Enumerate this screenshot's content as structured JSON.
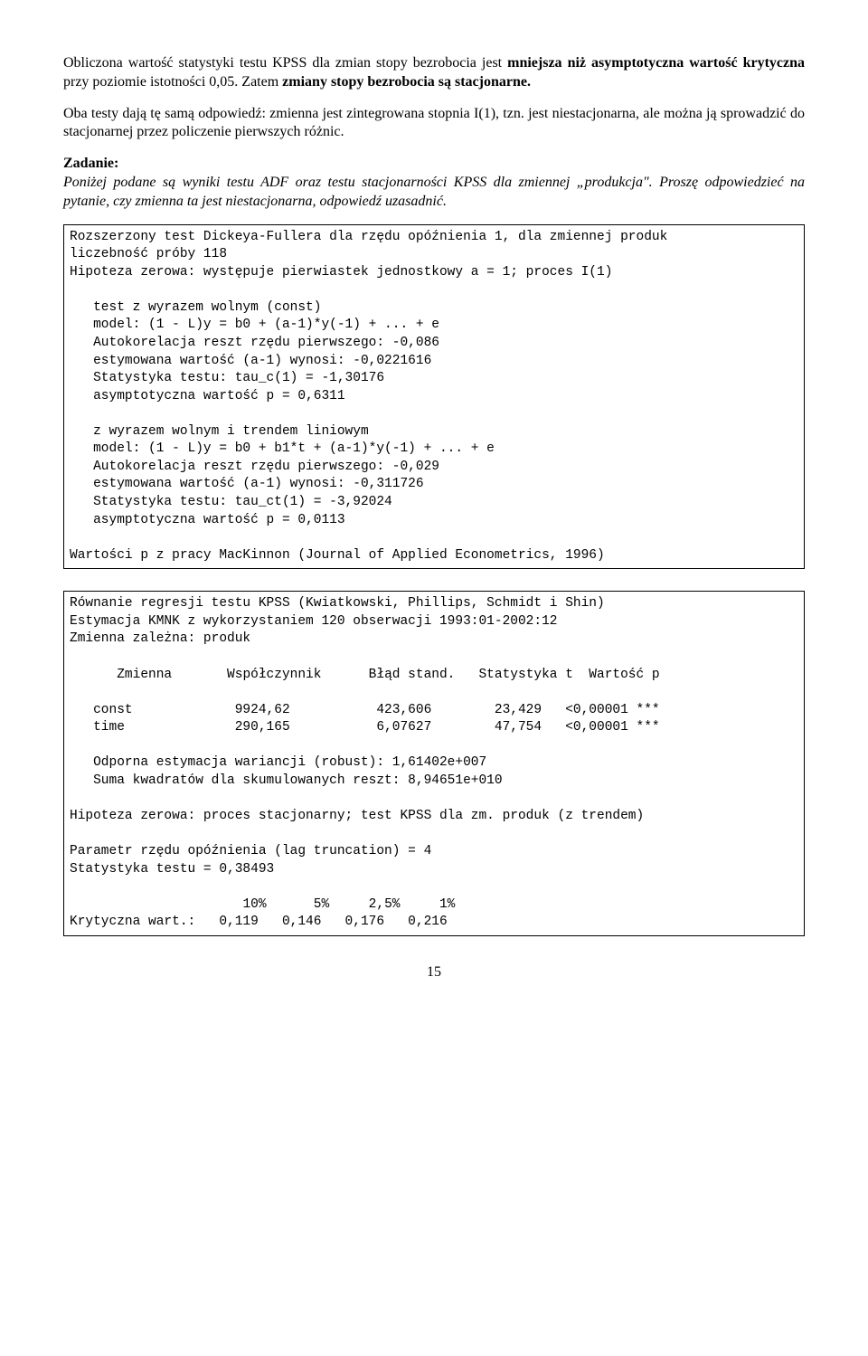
{
  "intro": {
    "p1a": "Obliczona wartość statystyki testu KPSS dla zmian stopy bezrobocia jest ",
    "p1b": "mniejsza niż asymptotyczna wartość krytyczna",
    "p1c": " przy poziomie istotności 0,05. Zatem ",
    "p1d": "zmiany stopy bezrobocia są stacjonarne.",
    "p2": "Oba testy dają tę samą odpowiedź: zmienna jest zintegrowana stopnia I(1), tzn. jest niestacjonarna, ale można ją sprowadzić do stacjonarnej przez policzenie pierwszych różnic."
  },
  "zadanie": {
    "heading": "Zadanie:",
    "body": "Poniżej podane są wyniki testu ADF oraz testu stacjonarności KPSS dla zmiennej „produkcja\". Proszę odpowiedzieć na pytanie, czy zmienna ta jest niestacjonarna, odpowiedź uzasadnić."
  },
  "adf_box": "Rozszerzony test Dickeya-Fullera dla rzędu opóźnienia 1, dla zmiennej produk\nliczebność próby 118\nHipoteza zerowa: występuje pierwiastek jednostkowy a = 1; proces I(1)\n\n   test z wyrazem wolnym (const)\n   model: (1 - L)y = b0 + (a-1)*y(-1) + ... + e\n   Autokorelacja reszt rzędu pierwszego: -0,086\n   estymowana wartość (a-1) wynosi: -0,0221616\n   Statystyka testu: tau_c(1) = -1,30176\n   asymptotyczna wartość p = 0,6311\n\n   z wyrazem wolnym i trendem liniowym\n   model: (1 - L)y = b0 + b1*t + (a-1)*y(-1) + ... + e\n   Autokorelacja reszt rzędu pierwszego: -0,029\n   estymowana wartość (a-1) wynosi: -0,311726\n   Statystyka testu: tau_ct(1) = -3,92024\n   asymptotyczna wartość p = 0,0113\n\nWartości p z pracy MacKinnon (Journal of Applied Econometrics, 1996)",
  "kpss_box": "Równanie regresji testu KPSS (Kwiatkowski, Phillips, Schmidt i Shin)\nEstymacja KMNK z wykorzystaniem 120 obserwacji 1993:01-2002:12\nZmienna zależna: produk\n\n      Zmienna       Współczynnik      Błąd stand.   Statystyka t  Wartość p\n\n   const             9924,62           423,606        23,429   <0,00001 ***\n   time              290,165           6,07627        47,754   <0,00001 ***\n\n   Odporna estymacja wariancji (robust): 1,61402e+007\n   Suma kwadratów dla skumulowanych reszt: 8,94651e+010\n\nHipoteza zerowa: proces stacjonarny; test KPSS dla zm. produk (z trendem)\n\nParametr rzędu opóźnienia (lag truncation) = 4\nStatystyka testu = 0,38493\n\n                      10%      5%     2,5%     1%\nKrytyczna wart.:   0,119   0,146   0,176   0,216",
  "pagenum": "15"
}
